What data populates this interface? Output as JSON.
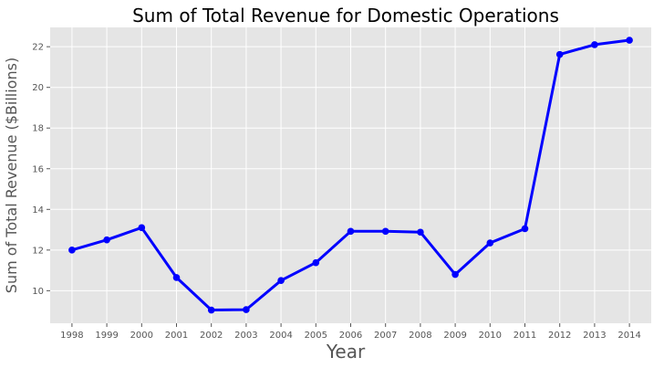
{
  "chart_data": {
    "type": "line",
    "title": "Sum of Total Revenue for Domestic Operations",
    "xlabel": "Year",
    "ylabel": "Sum of Total Revenue ($Billions)",
    "x": [
      "1998",
      "1999",
      "2000",
      "2001",
      "2002",
      "2003",
      "2004",
      "2005",
      "2006",
      "2007",
      "2008",
      "2009",
      "2010",
      "2011",
      "2012",
      "2013",
      "2014"
    ],
    "series": [
      {
        "values": [
          12.0,
          12.5,
          13.1,
          10.65,
          9.05,
          9.07,
          10.5,
          11.38,
          12.92,
          12.92,
          12.88,
          10.8,
          12.35,
          13.05,
          21.62,
          22.1,
          22.32
        ]
      }
    ],
    "yticks": [
      10,
      12,
      14,
      16,
      18,
      20,
      22
    ],
    "ylim": [
      8.4,
      22.95
    ],
    "grid": true,
    "colors": {
      "line": "#0000ff",
      "background": "#e5e5e5",
      "grid": "#ffffff"
    }
  }
}
